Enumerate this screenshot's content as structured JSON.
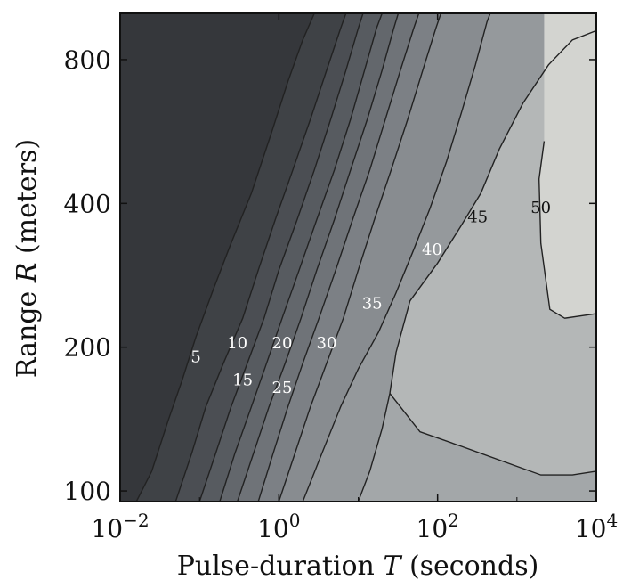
{
  "chart_data": {
    "type": "contour",
    "title": "",
    "xlabel": {
      "prefix": "Pulse-duration ",
      "var": "T",
      "suffix": "  (seconds)"
    },
    "ylabel": {
      "prefix": "Range ",
      "var": "R",
      "suffix": "  (meters)"
    },
    "x_scale": "log",
    "y_scale": "log",
    "xlim": [
      0.01,
      10000
    ],
    "ylim": [
      95,
      1000
    ],
    "x_ticks": [
      {
        "value": 0.01,
        "base": "10",
        "exp": "−2"
      },
      {
        "value": 1,
        "base": "10",
        "exp": "0"
      },
      {
        "value": 100,
        "base": "10",
        "exp": "2"
      },
      {
        "value": 10000,
        "base": "10",
        "exp": "4"
      }
    ],
    "y_ticks": [
      {
        "value": 100,
        "label": "100"
      },
      {
        "value": 200,
        "label": "200"
      },
      {
        "value": 400,
        "label": "400"
      },
      {
        "value": 800,
        "label": "800"
      }
    ],
    "fill_colors": [
      "#35373b",
      "#3f4246",
      "#4b4e53",
      "#575b60",
      "#63676c",
      "#6f7378",
      "#7c8085",
      "#888c90",
      "#95999c",
      "#a3a7a9",
      "#b4b7b7",
      "#d3d4d0"
    ],
    "contour_lines": [
      {
        "level": 5,
        "points": [
          [
            0.016,
            95
          ],
          [
            0.025,
            110
          ],
          [
            0.04,
            140
          ],
          [
            0.06,
            170
          ],
          [
            0.09,
            210
          ],
          [
            0.15,
            265
          ],
          [
            0.25,
            330
          ],
          [
            0.45,
            420
          ],
          [
            0.8,
            560
          ],
          [
            1.3,
            720
          ],
          [
            2.0,
            880
          ],
          [
            2.8,
            1000
          ]
        ]
      },
      {
        "level": 10,
        "points": [
          [
            0.05,
            95
          ],
          [
            0.08,
            120
          ],
          [
            0.12,
            150
          ],
          [
            0.2,
            185
          ],
          [
            0.35,
            230
          ],
          [
            0.55,
            290
          ],
          [
            0.9,
            370
          ],
          [
            1.5,
            470
          ],
          [
            2.5,
            600
          ],
          [
            4.0,
            760
          ],
          [
            6.0,
            930
          ],
          [
            7.0,
            1000
          ]
        ]
      },
      {
        "level": 15,
        "points": [
          [
            0.1,
            95
          ],
          [
            0.16,
            120
          ],
          [
            0.25,
            150
          ],
          [
            0.4,
            185
          ],
          [
            0.65,
            230
          ],
          [
            1.0,
            290
          ],
          [
            1.7,
            370
          ],
          [
            2.8,
            470
          ],
          [
            4.5,
            600
          ],
          [
            7.0,
            760
          ],
          [
            10.0,
            930
          ],
          [
            11.5,
            1000
          ]
        ]
      },
      {
        "level": 20,
        "points": [
          [
            0.18,
            95
          ],
          [
            0.28,
            120
          ],
          [
            0.45,
            150
          ],
          [
            0.7,
            185
          ],
          [
            1.1,
            230
          ],
          [
            1.8,
            290
          ],
          [
            3.0,
            370
          ],
          [
            5.0,
            470
          ],
          [
            8.0,
            600
          ],
          [
            12.0,
            760
          ],
          [
            17.0,
            930
          ],
          [
            20.0,
            1000
          ]
        ]
      },
      {
        "level": 25,
        "points": [
          [
            0.3,
            95
          ],
          [
            0.48,
            120
          ],
          [
            0.75,
            150
          ],
          [
            1.2,
            185
          ],
          [
            1.9,
            230
          ],
          [
            3.0,
            290
          ],
          [
            5.0,
            370
          ],
          [
            8.0,
            470
          ],
          [
            13.0,
            600
          ],
          [
            20.0,
            760
          ],
          [
            28.0,
            930
          ],
          [
            32.0,
            1000
          ]
        ]
      },
      {
        "level": 30,
        "points": [
          [
            0.55,
            95
          ],
          [
            0.85,
            120
          ],
          [
            1.3,
            150
          ],
          [
            2.0,
            185
          ],
          [
            3.2,
            230
          ],
          [
            5.2,
            290
          ],
          [
            8.5,
            370
          ],
          [
            14.0,
            470
          ],
          [
            22.0,
            600
          ],
          [
            34.0,
            760
          ],
          [
            50.0,
            930
          ],
          [
            58.0,
            1000
          ]
        ]
      },
      {
        "level": 35,
        "points": [
          [
            1.0,
            95
          ],
          [
            1.6,
            120
          ],
          [
            2.5,
            150
          ],
          [
            4.0,
            185
          ],
          [
            6.5,
            230
          ],
          [
            10.0,
            290
          ],
          [
            16.0,
            370
          ],
          [
            26.0,
            470
          ],
          [
            42.0,
            600
          ],
          [
            65.0,
            760
          ],
          [
            95.0,
            930
          ],
          [
            110.0,
            1000
          ]
        ]
      },
      {
        "level": 40,
        "points": [
          [
            2.0,
            95
          ],
          [
            3.5,
            120
          ],
          [
            6.0,
            150
          ],
          [
            10.0,
            180
          ],
          [
            18.0,
            215
          ],
          [
            30.0,
            260
          ],
          [
            50.0,
            320
          ],
          [
            80.0,
            390
          ],
          [
            130.0,
            490
          ],
          [
            200.0,
            620
          ],
          [
            300.0,
            780
          ],
          [
            420.0,
            960
          ],
          [
            460.0,
            1000
          ]
        ]
      },
      {
        "level": 45,
        "points": [
          [
            10.0,
            95
          ],
          [
            14.0,
            110
          ],
          [
            20.0,
            135
          ],
          [
            25.0,
            160
          ],
          [
            30.0,
            195
          ],
          [
            45.0,
            250
          ],
          [
            100.0,
            300
          ],
          [
            200.0,
            360
          ],
          [
            350.0,
            420
          ],
          [
            600.0,
            520
          ],
          [
            1200.0,
            650
          ],
          [
            2500.0,
            780
          ],
          [
            5000.0,
            880
          ],
          [
            10000.0,
            920
          ]
        ]
      },
      {
        "level": 50,
        "points": [
          [
            2200.0,
            540
          ],
          [
            1900.0,
            450
          ],
          [
            2000.0,
            330
          ],
          [
            2600.0,
            240
          ],
          [
            4000.0,
            230
          ],
          [
            10000.0,
            235
          ]
        ]
      },
      {
        "level": 45,
        "points": [
          [
            25.0,
            160
          ],
          [
            60.0,
            133
          ],
          [
            200.0,
            124
          ],
          [
            700.0,
            115
          ],
          [
            2000.0,
            108
          ],
          [
            5000.0,
            108
          ],
          [
            10000.0,
            110
          ]
        ]
      }
    ],
    "contour_labels": [
      {
        "text": "5",
        "x": 0.09,
        "y": 190,
        "color": "#ffffff"
      },
      {
        "text": "10",
        "x": 0.3,
        "y": 203,
        "color": "#ffffff"
      },
      {
        "text": "15",
        "x": 0.35,
        "y": 170,
        "color": "#ffffff"
      },
      {
        "text": "20",
        "x": 1.1,
        "y": 203,
        "color": "#ffffff"
      },
      {
        "text": "25",
        "x": 1.1,
        "y": 164,
        "color": "#ffffff"
      },
      {
        "text": "30",
        "x": 4.0,
        "y": 203,
        "color": "#ffffff"
      },
      {
        "text": "35",
        "x": 15.0,
        "y": 246,
        "color": "#ffffff"
      },
      {
        "text": "40",
        "x": 85.0,
        "y": 319,
        "color": "#ffffff"
      },
      {
        "text": "45",
        "x": 320.0,
        "y": 373,
        "color": "#111111"
      },
      {
        "text": "50",
        "x": 2000.0,
        "y": 390,
        "color": "#111111"
      }
    ]
  }
}
